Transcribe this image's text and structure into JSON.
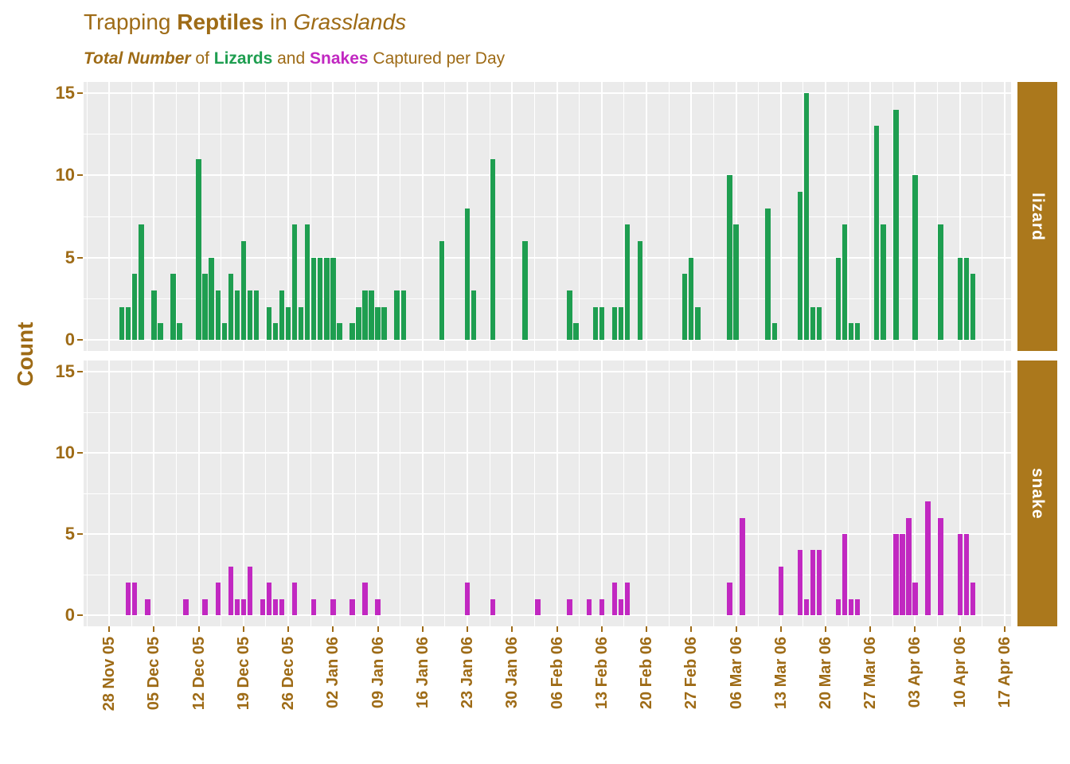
{
  "title": {
    "part1": "Trapping ",
    "part2": "Reptiles",
    "part3": " in ",
    "part4": "Grasslands"
  },
  "subtitle": {
    "part1": "Total Number",
    "part2": " of ",
    "part3": "Lizards",
    "part4": " and ",
    "part5": "Snakes",
    "part6": " Captured per Day"
  },
  "colors": {
    "axis_brown": "#9E6B16",
    "strip_bg": "#AB781C",
    "strip_text": "#FFFFFF",
    "lizard_green": "#1E9E50",
    "snake_magenta": "#C128C1",
    "panel_bg": "#EBEBEB",
    "grid": "#FFFFFF"
  },
  "chart_data": {
    "type": "bar",
    "title": "Trapping Reptiles in Grasslands",
    "subtitle": "Total Number of Lizards and Snakes Captured per Day",
    "ylabel": "Count",
    "xlabel": "",
    "ylim": [
      0,
      15
    ],
    "yticks": [
      0,
      5,
      10,
      15
    ],
    "yticks_minor": [
      2.5,
      7.5,
      12.5
    ],
    "grid": "on",
    "legend": "none",
    "facet_layout": "rows, strips on right",
    "x_start_date": "2005-11-28",
    "x_tick_interval_days": 7,
    "x_tick_labels": [
      "28 Nov 05",
      "05 Dec 05",
      "12 Dec 05",
      "19 Dec 05",
      "26 Dec 05",
      "02 Jan 06",
      "09 Jan 06",
      "16 Jan 06",
      "23 Jan 06",
      "30 Jan 06",
      "06 Feb 06",
      "13 Feb 06",
      "20 Feb 06",
      "27 Feb 06",
      "06 Mar 06",
      "13 Mar 06",
      "20 Mar 06",
      "27 Mar 06",
      "03 Apr 06",
      "10 Apr 06",
      "17 Apr 06"
    ],
    "facets": [
      {
        "name": "lizard",
        "color": "#1E9E50",
        "points": [
          [
            "2005-11-30",
            2
          ],
          [
            "2005-12-01",
            2
          ],
          [
            "2005-12-02",
            4
          ],
          [
            "2005-12-03",
            7
          ],
          [
            "2005-12-05",
            3
          ],
          [
            "2005-12-06",
            1
          ],
          [
            "2005-12-08",
            4
          ],
          [
            "2005-12-09",
            1
          ],
          [
            "2005-12-12",
            11
          ],
          [
            "2005-12-13",
            4
          ],
          [
            "2005-12-14",
            5
          ],
          [
            "2005-12-15",
            3
          ],
          [
            "2005-12-16",
            1
          ],
          [
            "2005-12-17",
            4
          ],
          [
            "2005-12-18",
            3
          ],
          [
            "2005-12-19",
            6
          ],
          [
            "2005-12-20",
            3
          ],
          [
            "2005-12-21",
            3
          ],
          [
            "2005-12-23",
            2
          ],
          [
            "2005-12-24",
            1
          ],
          [
            "2005-12-25",
            3
          ],
          [
            "2005-12-26",
            2
          ],
          [
            "2005-12-27",
            7
          ],
          [
            "2005-12-28",
            2
          ],
          [
            "2005-12-29",
            7
          ],
          [
            "2005-12-30",
            5
          ],
          [
            "2005-12-31",
            5
          ],
          [
            "2006-01-01",
            5
          ],
          [
            "2006-01-02",
            5
          ],
          [
            "2006-01-03",
            1
          ],
          [
            "2006-01-05",
            1
          ],
          [
            "2006-01-06",
            2
          ],
          [
            "2006-01-07",
            3
          ],
          [
            "2006-01-08",
            3
          ],
          [
            "2006-01-09",
            2
          ],
          [
            "2006-01-10",
            2
          ],
          [
            "2006-01-12",
            3
          ],
          [
            "2006-01-13",
            3
          ],
          [
            "2006-01-19",
            6
          ],
          [
            "2006-01-23",
            8
          ],
          [
            "2006-01-24",
            3
          ],
          [
            "2006-01-27",
            11
          ],
          [
            "2006-02-01",
            6
          ],
          [
            "2006-02-08",
            3
          ],
          [
            "2006-02-09",
            1
          ],
          [
            "2006-02-12",
            2
          ],
          [
            "2006-02-13",
            2
          ],
          [
            "2006-02-15",
            2
          ],
          [
            "2006-02-16",
            2
          ],
          [
            "2006-02-17",
            7
          ],
          [
            "2006-02-19",
            6
          ],
          [
            "2006-02-26",
            4
          ],
          [
            "2006-02-27",
            5
          ],
          [
            "2006-02-28",
            2
          ],
          [
            "2006-03-05",
            10
          ],
          [
            "2006-03-06",
            7
          ],
          [
            "2006-03-11",
            8
          ],
          [
            "2006-03-12",
            1
          ],
          [
            "2006-03-16",
            9
          ],
          [
            "2006-03-17",
            15
          ],
          [
            "2006-03-18",
            2
          ],
          [
            "2006-03-19",
            2
          ],
          [
            "2006-03-22",
            5
          ],
          [
            "2006-03-23",
            7
          ],
          [
            "2006-03-24",
            1
          ],
          [
            "2006-03-25",
            1
          ],
          [
            "2006-03-28",
            13
          ],
          [
            "2006-03-29",
            7
          ],
          [
            "2006-03-31",
            14
          ],
          [
            "2006-04-03",
            10
          ],
          [
            "2006-04-07",
            7
          ],
          [
            "2006-04-10",
            5
          ],
          [
            "2006-04-11",
            5
          ],
          [
            "2006-04-12",
            4
          ]
        ]
      },
      {
        "name": "snake",
        "color": "#C128C1",
        "points": [
          [
            "2005-12-01",
            2
          ],
          [
            "2005-12-02",
            2
          ],
          [
            "2005-12-04",
            1
          ],
          [
            "2005-12-10",
            1
          ],
          [
            "2005-12-13",
            1
          ],
          [
            "2005-12-15",
            2
          ],
          [
            "2005-12-17",
            3
          ],
          [
            "2005-12-18",
            1
          ],
          [
            "2005-12-19",
            1
          ],
          [
            "2005-12-20",
            3
          ],
          [
            "2005-12-22",
            1
          ],
          [
            "2005-12-23",
            2
          ],
          [
            "2005-12-24",
            1
          ],
          [
            "2005-12-25",
            1
          ],
          [
            "2005-12-27",
            2
          ],
          [
            "2005-12-30",
            1
          ],
          [
            "2006-01-02",
            1
          ],
          [
            "2006-01-05",
            1
          ],
          [
            "2006-01-07",
            2
          ],
          [
            "2006-01-09",
            1
          ],
          [
            "2006-01-23",
            2
          ],
          [
            "2006-01-27",
            1
          ],
          [
            "2006-02-03",
            1
          ],
          [
            "2006-02-08",
            1
          ],
          [
            "2006-02-11",
            1
          ],
          [
            "2006-02-13",
            1
          ],
          [
            "2006-02-15",
            2
          ],
          [
            "2006-02-16",
            1
          ],
          [
            "2006-02-17",
            2
          ],
          [
            "2006-03-05",
            2
          ],
          [
            "2006-03-07",
            6
          ],
          [
            "2006-03-13",
            3
          ],
          [
            "2006-03-16",
            4
          ],
          [
            "2006-03-17",
            1
          ],
          [
            "2006-03-18",
            4
          ],
          [
            "2006-03-19",
            4
          ],
          [
            "2006-03-22",
            1
          ],
          [
            "2006-03-23",
            5
          ],
          [
            "2006-03-24",
            1
          ],
          [
            "2006-03-25",
            1
          ],
          [
            "2006-03-31",
            5
          ],
          [
            "2006-04-01",
            5
          ],
          [
            "2006-04-02",
            6
          ],
          [
            "2006-04-03",
            2
          ],
          [
            "2006-04-05",
            7
          ],
          [
            "2006-04-07",
            6
          ],
          [
            "2006-04-10",
            5
          ],
          [
            "2006-04-11",
            5
          ],
          [
            "2006-04-12",
            2
          ]
        ]
      }
    ]
  }
}
